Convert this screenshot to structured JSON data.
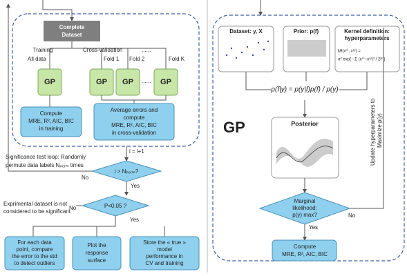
{
  "left": {
    "complete_dataset": [
      "Complete",
      "Dataset"
    ],
    "training": "Training",
    "cross_validation": "Cross-validation",
    "all_data": "All data",
    "fold1": "Fold 1",
    "fold2": "Fold 2",
    "foldk": "Fold K",
    "dots": [
      "......",
      "......"
    ],
    "gp": [
      "GP",
      "GP",
      "GP",
      "GP"
    ],
    "compute_training": [
      "Compute",
      "MRE, R², AIC, BIC",
      "in training"
    ],
    "compute_cv": [
      "Average errors and",
      "compute",
      "MRE, R², AIC, BIC",
      "in cross-validation"
    ],
    "increment": "i = i+1",
    "loop_note": [
      "Significance test loop: Randomly",
      "permute data labels Nₚₑᵣₘ times"
    ],
    "decision1": "i > Nₚₑᵣₘ?",
    "no1": "No",
    "yes1": "Yes",
    "not_significant": [
      "Exprimental dataset is not",
      "considered to be significant"
    ],
    "decision2": "P<0.05 ?",
    "no2": "No",
    "yes2": "Yes",
    "outliers": [
      "For each data",
      "point, compare",
      "the error to the std",
      "to detect outliers"
    ],
    "plot": [
      "Plot the",
      "response",
      "surface"
    ],
    "store": [
      "Store the « true »",
      "model",
      "performance in",
      "CV and training"
    ]
  },
  "right": {
    "dataset": "Dataset: y, X",
    "prior": "Prior: p(f)",
    "kernel": [
      "Kernel definition:",
      "hyperparameters"
    ],
    "kernel_formula": [
      "kθ(x⁽ⁱ⁾, x⁽ʲ⁾) =",
      "σ² exp{ −Σ (x⁽ⁱ⁾−x⁽ʲ⁾)² / 2l² }"
    ],
    "bayes": "p(f|y) = p(y|f)p(f) / p(y)",
    "gp": "GP",
    "posterior": "Posterior",
    "decision": [
      "Marginal",
      "likelihood:",
      "p(y) max?"
    ],
    "yes": "Yes",
    "no": "No",
    "update": [
      "Update hyperparameters to",
      "Maximize p(y)"
    ],
    "compute": [
      "Compute",
      "MRE, R², AIC, BIC"
    ]
  }
}
